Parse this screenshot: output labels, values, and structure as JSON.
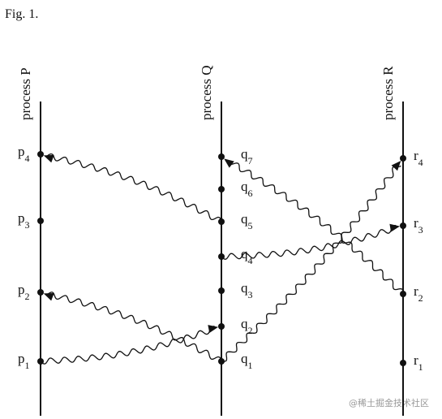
{
  "title": "Fig. 1.",
  "processes": [
    {
      "label": "process P",
      "events": [
        {
          "letter": "p",
          "sub": "1"
        },
        {
          "letter": "p",
          "sub": "2"
        },
        {
          "letter": "p",
          "sub": "3"
        },
        {
          "letter": "p",
          "sub": "4"
        }
      ]
    },
    {
      "label": "process Q",
      "events": [
        {
          "letter": "q",
          "sub": "1"
        },
        {
          "letter": "q",
          "sub": "2"
        },
        {
          "letter": "q",
          "sub": "3"
        },
        {
          "letter": "q",
          "sub": "4"
        },
        {
          "letter": "q",
          "sub": "5"
        },
        {
          "letter": "q",
          "sub": "6"
        },
        {
          "letter": "q",
          "sub": "7"
        }
      ]
    },
    {
      "label": "process R",
      "events": [
        {
          "letter": "r",
          "sub": "1"
        },
        {
          "letter": "r",
          "sub": "2"
        },
        {
          "letter": "r",
          "sub": "3"
        },
        {
          "letter": "r",
          "sub": "4"
        }
      ]
    }
  ],
  "watermark": "@稀土掘金技术社区"
}
